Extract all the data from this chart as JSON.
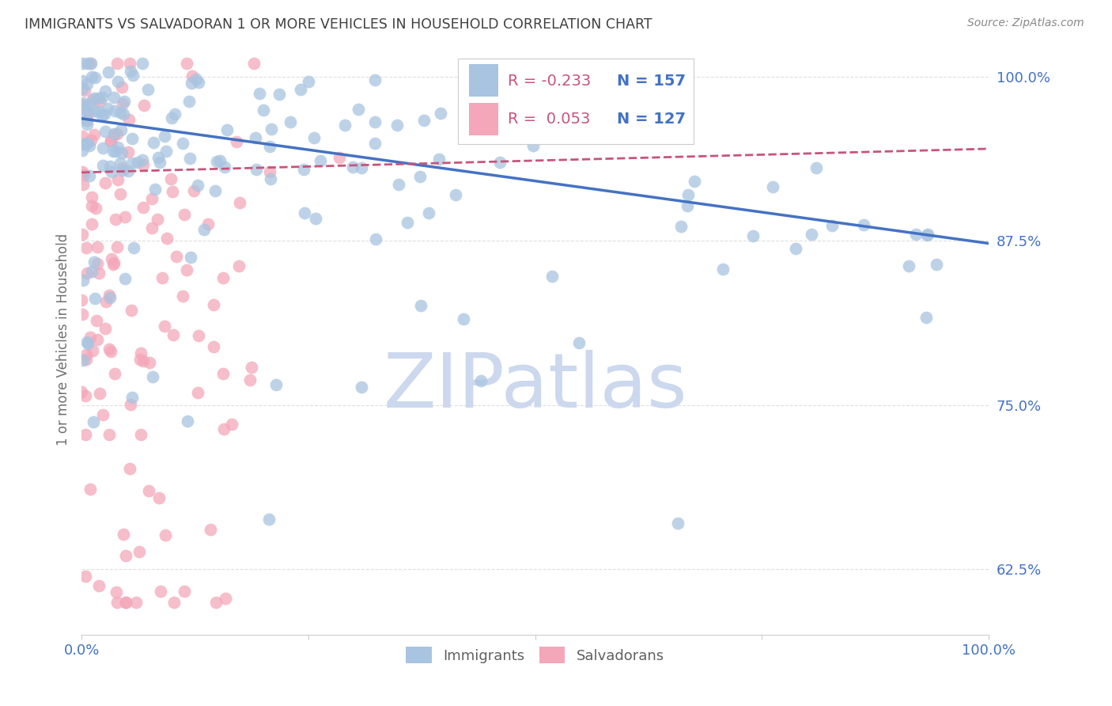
{
  "title": "IMMIGRANTS VS SALVADORAN 1 OR MORE VEHICLES IN HOUSEHOLD CORRELATION CHART",
  "source": "Source: ZipAtlas.com",
  "ylabel": "1 or more Vehicles in Household",
  "ytick_labels": [
    "100.0%",
    "87.5%",
    "75.0%",
    "62.5%"
  ],
  "ytick_values": [
    1.0,
    0.875,
    0.75,
    0.625
  ],
  "legend_label1": "Immigrants",
  "legend_label2": "Salvadorans",
  "R_immigrants": -0.233,
  "N_immigrants": 157,
  "R_salvadorans": 0.053,
  "N_salvadorans": 127,
  "color_immigrants": "#a8c4e0",
  "color_salvadorans": "#f4a7b9",
  "color_trend_immigrants": "#4472c4",
  "color_trend_salvadorans": "#c8547a",
  "watermark_color": "#ccd8ee",
  "title_color": "#404040",
  "axis_color": "#4472c4",
  "background_color": "#ffffff",
  "grid_color": "#d8d8d8",
  "xlim": [
    0.0,
    1.0
  ],
  "ylim": [
    0.575,
    1.025
  ]
}
